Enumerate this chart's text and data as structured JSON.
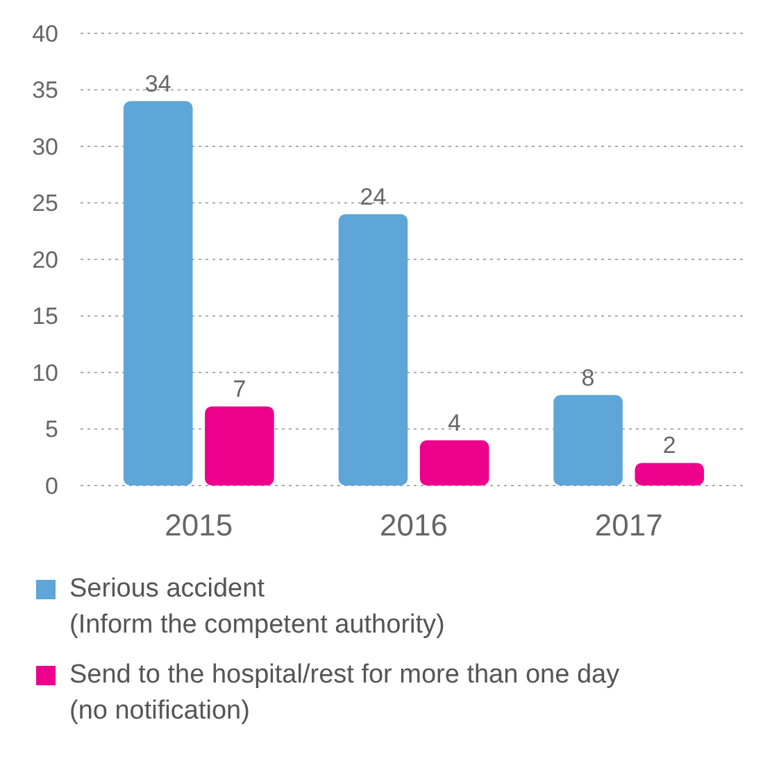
{
  "chart_data": {
    "type": "bar",
    "categories": [
      "2015",
      "2016",
      "2017"
    ],
    "series": [
      {
        "name": "Serious accident (Inform the competent authority)",
        "color": "#5ea5d8",
        "values": [
          34,
          24,
          8
        ]
      },
      {
        "name": "Send to the hospital/rest for more than one day (no notification)",
        "color": "#ec008c",
        "values": [
          7,
          4,
          2
        ]
      }
    ],
    "ylim": [
      0,
      40
    ],
    "yticks": [
      0,
      5,
      10,
      15,
      20,
      25,
      30,
      35,
      40
    ],
    "grid": "y",
    "data_labels": true,
    "legend": "bottom"
  }
}
